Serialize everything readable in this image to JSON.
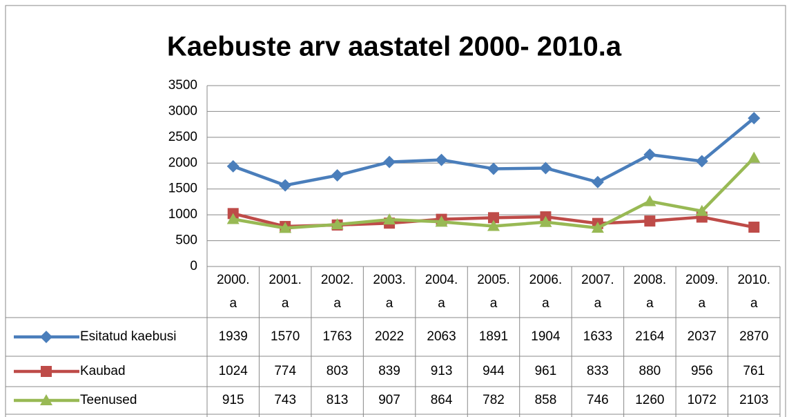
{
  "chart_data": {
    "type": "line",
    "title": "Kaebuste arv aastatel 2000- 2010.a",
    "categories": [
      "2000. a",
      "2001. a",
      "2002. a",
      "2003. a",
      "2004. a",
      "2005. a",
      "2006. a",
      "2007. a",
      "2008. a",
      "2009. a",
      "2010. a"
    ],
    "series": [
      {
        "name": "Esitatud kaebusi",
        "color": "#4a7ebb",
        "marker": "diamond",
        "values": [
          1939,
          1570,
          1763,
          2022,
          2063,
          1891,
          1904,
          1633,
          2164,
          2037,
          2870
        ]
      },
      {
        "name": "Kaubad",
        "color": "#be4b48",
        "marker": "square",
        "values": [
          1024,
          774,
          803,
          839,
          913,
          944,
          961,
          833,
          880,
          956,
          761
        ]
      },
      {
        "name": "Teenused",
        "color": "#98b954",
        "marker": "triangle",
        "values": [
          915,
          743,
          813,
          907,
          864,
          782,
          858,
          746,
          1260,
          1072,
          2103
        ]
      }
    ],
    "ylim": [
      0,
      3500
    ],
    "yticks": [
      0,
      500,
      1000,
      1500,
      2000,
      2500,
      3000,
      3500
    ],
    "grid": true
  }
}
